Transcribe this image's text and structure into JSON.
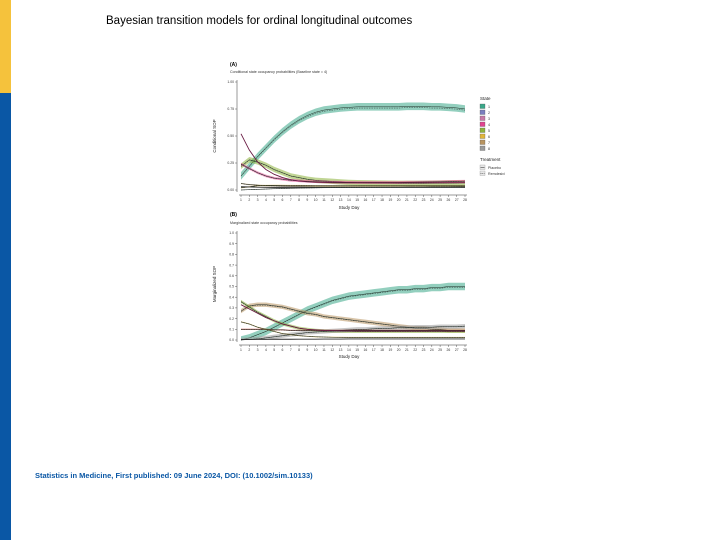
{
  "slide": {
    "title": "Bayesian transition models for ordinal longitudinal outcomes",
    "citation": "Statistics in Medicine, First published: 09 June 2024, DOI: (10.1002/sim.10133)"
  },
  "colors": {
    "accent_yellow": "#f5c23c",
    "accent_blue": "#0a57a5"
  },
  "chart_data": [
    {
      "panel": "(A)",
      "type": "line",
      "title": "Conditional state occupancy probabilities (Baseline state = 4)",
      "xlabel": "Study Day",
      "ylabel": "Conditional SOP",
      "x": [
        1,
        2,
        3,
        4,
        5,
        6,
        7,
        8,
        9,
        10,
        11,
        12,
        13,
        14,
        15,
        16,
        17,
        18,
        19,
        20,
        21,
        22,
        23,
        24,
        25,
        26,
        27,
        28
      ],
      "ylim": [
        0,
        1
      ],
      "yticks": [
        "0.00",
        "0.25",
        "0.50",
        "0.75",
        "1.00"
      ],
      "legend": {
        "state_title": "State",
        "states": [
          {
            "label": "1",
            "color": "#3aa789"
          },
          {
            "label": "2",
            "color": "#7a7fbf"
          },
          {
            "label": "3",
            "color": "#c77aa6"
          },
          {
            "label": "4",
            "color": "#e0458f"
          },
          {
            "label": "5",
            "color": "#8db33c"
          },
          {
            "label": "6",
            "color": "#e0b53a"
          },
          {
            "label": "7",
            "color": "#b89460"
          },
          {
            "label": "8",
            "color": "#9a9a9a"
          }
        ],
        "treatment_title": "Treatment",
        "treatments": [
          "Placebo",
          "Remdesivir"
        ]
      },
      "series": [
        {
          "color": "#3aa789",
          "values": [
            0.13,
            0.22,
            0.31,
            0.39,
            0.47,
            0.54,
            0.6,
            0.65,
            0.69,
            0.72,
            0.74,
            0.75,
            0.76,
            0.765,
            0.77,
            0.77,
            0.77,
            0.77,
            0.77,
            0.77,
            0.775,
            0.775,
            0.775,
            0.77,
            0.77,
            0.765,
            0.76,
            0.75
          ],
          "band": 0.035
        },
        {
          "color": "#8db33c",
          "values": [
            0.22,
            0.28,
            0.26,
            0.23,
            0.19,
            0.16,
            0.13,
            0.115,
            0.1,
            0.09,
            0.085,
            0.08,
            0.075,
            0.07,
            0.068,
            0.066,
            0.065,
            0.064,
            0.063,
            0.062,
            0.062,
            0.062,
            0.062,
            0.063,
            0.064,
            0.065,
            0.066,
            0.068
          ],
          "band": 0.025
        },
        {
          "color": "#e0458f",
          "values": [
            0.24,
            0.2,
            0.16,
            0.13,
            0.11,
            0.1,
            0.09,
            0.085,
            0.08,
            0.077,
            0.075,
            0.073,
            0.072,
            0.071,
            0.07,
            0.07,
            0.07,
            0.07,
            0.07,
            0.07,
            0.072,
            0.073,
            0.074,
            0.075,
            0.076,
            0.078,
            0.08,
            0.082
          ],
          "band": 0.012
        },
        {
          "color": "#6a1c44",
          "values": [
            0.52,
            0.37,
            0.26,
            0.19,
            0.145,
            0.115,
            0.095,
            0.083,
            0.076,
            0.072,
            0.07,
            0.068,
            0.067,
            0.067,
            0.067,
            0.067,
            0.067,
            0.067,
            0.067,
            0.067,
            0.067,
            0.067,
            0.067,
            0.067,
            0.067,
            0.067,
            0.067,
            0.067
          ]
        },
        {
          "color": "#b89460",
          "values": [
            0.06,
            0.05,
            0.045,
            0.04,
            0.038,
            0.036,
            0.035,
            0.035,
            0.035,
            0.035,
            0.035,
            0.035,
            0.035,
            0.035,
            0.035,
            0.035,
            0.035,
            0.035,
            0.035,
            0.035,
            0.035,
            0.035,
            0.035,
            0.035,
            0.035,
            0.035,
            0.035,
            0.035
          ],
          "band": 0.006
        },
        {
          "color": "#e0b53a",
          "values": [
            0.02,
            0.03,
            0.04,
            0.043,
            0.044,
            0.044,
            0.043,
            0.042,
            0.041,
            0.04,
            0.04,
            0.04,
            0.04,
            0.04,
            0.04,
            0.04,
            0.04,
            0.04,
            0.04,
            0.04,
            0.04,
            0.04,
            0.04,
            0.04,
            0.04,
            0.04,
            0.04,
            0.04
          ],
          "band": 0.005
        },
        {
          "color": "#2a2a2a",
          "values": [
            0.03,
            0.028,
            0.026,
            0.025,
            0.024,
            0.024,
            0.024,
            0.024,
            0.024,
            0.024,
            0.024,
            0.024,
            0.024,
            0.024,
            0.024,
            0.024,
            0.024,
            0.024,
            0.024,
            0.024,
            0.024,
            0.024,
            0.024,
            0.024,
            0.024,
            0.024,
            0.024,
            0.024
          ]
        },
        {
          "color": "#9a9a9a",
          "values": [
            0.0,
            0.003,
            0.006,
            0.009,
            0.012,
            0.014,
            0.016,
            0.018,
            0.019,
            0.02,
            0.021,
            0.022,
            0.022,
            0.023,
            0.023,
            0.024,
            0.024,
            0.025,
            0.025,
            0.025,
            0.026,
            0.026,
            0.026,
            0.027,
            0.027,
            0.027,
            0.028,
            0.028
          ],
          "band": 0.004
        }
      ]
    },
    {
      "panel": "(B)",
      "type": "line",
      "title": "Marginalized state occupancy probabilities",
      "xlabel": "Study Day",
      "ylabel": "Marginalized SOP",
      "x": [
        1,
        2,
        3,
        4,
        5,
        6,
        7,
        8,
        9,
        10,
        11,
        12,
        13,
        14,
        15,
        16,
        17,
        18,
        19,
        20,
        21,
        22,
        23,
        24,
        25,
        26,
        27,
        28
      ],
      "ylim": [
        0,
        1
      ],
      "yticks": [
        "0.0",
        "0.1",
        "0.2",
        "0.3",
        "0.4",
        "0.5",
        "0.6",
        "0.7",
        "0.8",
        "0.9",
        "1.0"
      ],
      "series": [
        {
          "color": "#3aa789",
          "values": [
            0.0,
            0.02,
            0.05,
            0.08,
            0.12,
            0.16,
            0.2,
            0.24,
            0.28,
            0.31,
            0.34,
            0.37,
            0.39,
            0.41,
            0.42,
            0.43,
            0.44,
            0.45,
            0.46,
            0.47,
            0.47,
            0.48,
            0.48,
            0.49,
            0.49,
            0.5,
            0.5,
            0.5
          ],
          "band": 0.035
        },
        {
          "color": "#b89460",
          "values": [
            0.27,
            0.32,
            0.33,
            0.33,
            0.32,
            0.31,
            0.29,
            0.27,
            0.25,
            0.24,
            0.22,
            0.21,
            0.2,
            0.19,
            0.18,
            0.17,
            0.16,
            0.15,
            0.14,
            0.13,
            0.12,
            0.11,
            0.11,
            0.1,
            0.1,
            0.09,
            0.09,
            0.09
          ],
          "band": 0.02
        },
        {
          "color": "#8db33c",
          "values": [
            0.36,
            0.31,
            0.26,
            0.22,
            0.18,
            0.15,
            0.13,
            0.11,
            0.1,
            0.09,
            0.085,
            0.08,
            0.08,
            0.08,
            0.08,
            0.08,
            0.08,
            0.08,
            0.08,
            0.08,
            0.08,
            0.08,
            0.08,
            0.08,
            0.08,
            0.08,
            0.08,
            0.08
          ],
          "band": 0.015
        },
        {
          "color": "#9a9a9a",
          "values": [
            0.0,
            0.005,
            0.01,
            0.02,
            0.03,
            0.04,
            0.05,
            0.06,
            0.07,
            0.075,
            0.08,
            0.085,
            0.09,
            0.095,
            0.1,
            0.1,
            0.105,
            0.11,
            0.11,
            0.115,
            0.115,
            0.12,
            0.12,
            0.12,
            0.125,
            0.125,
            0.125,
            0.13
          ],
          "band": 0.02
        },
        {
          "color": "#c0392b",
          "values": [
            0.1,
            0.1,
            0.1,
            0.1,
            0.095,
            0.095,
            0.09,
            0.09,
            0.09,
            0.09,
            0.09,
            0.09,
            0.09,
            0.09,
            0.09,
            0.09,
            0.09,
            0.09,
            0.09,
            0.09,
            0.09,
            0.09,
            0.09,
            0.09,
            0.09,
            0.09,
            0.09,
            0.09
          ],
          "band": 0.006
        },
        {
          "color": "#6a1c44",
          "values": [
            0.33,
            0.29,
            0.25,
            0.21,
            0.18,
            0.15,
            0.13,
            0.11,
            0.1,
            0.095,
            0.09,
            0.088,
            0.086,
            0.085,
            0.084,
            0.084,
            0.084,
            0.084,
            0.084,
            0.084,
            0.084,
            0.084,
            0.084,
            0.084,
            0.084,
            0.084,
            0.084,
            0.084
          ]
        },
        {
          "color": "#e0b53a",
          "values": [
            0.17,
            0.15,
            0.12,
            0.1,
            0.08,
            0.06,
            0.05,
            0.04,
            0.035,
            0.03,
            0.028,
            0.026,
            0.025,
            0.024,
            0.024,
            0.024,
            0.024,
            0.024,
            0.024,
            0.024,
            0.024,
            0.024,
            0.024,
            0.024,
            0.024,
            0.024,
            0.024,
            0.024
          ],
          "band": 0.005
        },
        {
          "color": "#2a2a2a",
          "values": [
            0.005,
            0.005,
            0.006,
            0.006,
            0.007,
            0.007,
            0.007,
            0.008,
            0.008,
            0.008,
            0.009,
            0.009,
            0.009,
            0.01,
            0.01,
            0.01,
            0.01,
            0.01,
            0.01,
            0.01,
            0.01,
            0.01,
            0.01,
            0.01,
            0.01,
            0.01,
            0.01,
            0.01
          ]
        }
      ]
    }
  ]
}
